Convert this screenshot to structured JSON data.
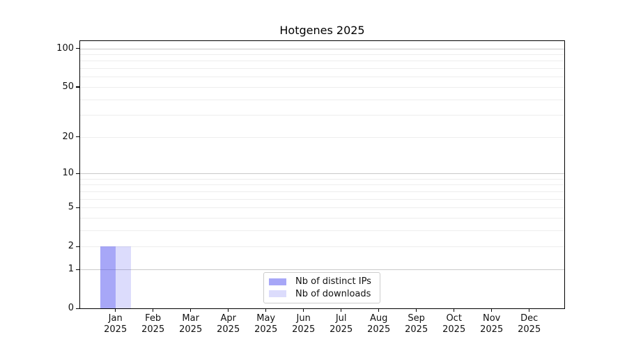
{
  "title": "Hotgenes 2025",
  "chart_data": {
    "type": "bar",
    "title": "Hotgenes 2025",
    "categories": [
      "Jan",
      "Feb",
      "Mar",
      "Apr",
      "May",
      "Jun",
      "Jul",
      "Aug",
      "Sep",
      "Oct",
      "Nov",
      "Dec"
    ],
    "x_year_label": "2025",
    "series": [
      {
        "name": "Nb of distinct IPs",
        "color": "#5050f0",
        "alpha": 0.5,
        "values": [
          2,
          0,
          0,
          0,
          0,
          0,
          0,
          0,
          0,
          0,
          0,
          0
        ]
      },
      {
        "name": "Nb of downloads",
        "color": "#5050f0",
        "alpha": 0.2,
        "values": [
          2,
          0,
          0,
          0,
          0,
          0,
          0,
          0,
          0,
          0,
          0,
          0
        ]
      }
    ],
    "yscale": "log1p",
    "ylim": [
      0,
      114
    ],
    "y_tick_values": [
      0,
      1,
      2,
      5,
      10,
      20,
      50,
      100
    ],
    "y_major_grid_values": [
      1,
      10,
      100
    ],
    "y_minor_grid_values": [
      2,
      3,
      4,
      5,
      6,
      7,
      8,
      9,
      20,
      30,
      40,
      50,
      60,
      70,
      80,
      90
    ],
    "xlabel": "",
    "ylabel": "",
    "grid": "horizontal-only",
    "legend_position": "lower center"
  },
  "colors": {
    "bar_base": "#5050f0",
    "major_grid": "#c9c9c9",
    "minor_grid": "#ededed",
    "axis": "#000000",
    "legend_border": "#cccccc",
    "background": "#ffffff",
    "text": "#111111"
  }
}
